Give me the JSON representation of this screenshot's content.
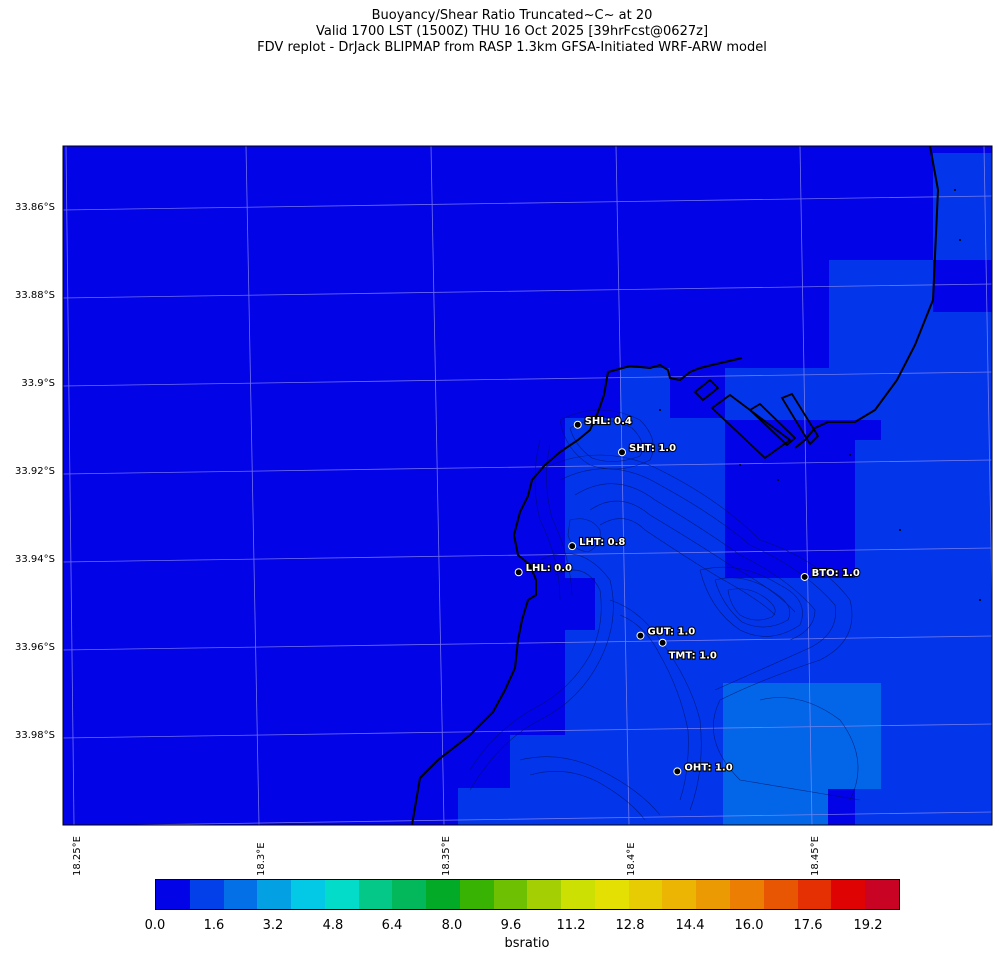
{
  "titles": {
    "line1": "Buoyancy/Shear Ratio Truncated~C~    at 20",
    "line2": "Valid 1700 LST (1500Z) THU 16 Oct 2025 [39hrFcst@0627z]",
    "line3": "FDV replot - DrJack BLIPMAP from RASP 1.3km GFSA-Initiated WRF-ARW model"
  },
  "latitude_labels": [
    "33.86°S",
    "33.88°S",
    "33.9°S",
    "33.92°S",
    "33.94°S",
    "33.96°S",
    "33.98°S"
  ],
  "longitude_labels": [
    "18.25°E",
    "18.3°E",
    "18.35°E",
    "18.4°E",
    "18.45°E"
  ],
  "stations": [
    {
      "label": "SHL: 0.4",
      "lon": 18.388,
      "lat": -33.9085
    },
    {
      "label": "SHT: 1.0",
      "lon": 18.4,
      "lat": -33.9155
    },
    {
      "label": "LHT: 0.8",
      "lon": 18.3865,
      "lat": -33.936
    },
    {
      "label": "LHL: 0.0",
      "lon": 18.372,
      "lat": -33.941
    },
    {
      "label": "BTO: 1.0",
      "lon": 18.4495,
      "lat": -33.947
    },
    {
      "label": "GUT: 1.0",
      "lon": 18.405,
      "lat": -33.9575
    },
    {
      "label": "TMT: 1.0",
      "lon": 18.411,
      "lat": -33.9595
    },
    {
      "label": "OHT: 1.0",
      "lon": 18.415,
      "lat": -33.989
    }
  ],
  "colorbar": {
    "colors": [
      "#0303e8",
      "#0340ea",
      "#0370e8",
      "#03a0e4",
      "#03c8e6",
      "#03dcc8",
      "#03c888",
      "#03b85a",
      "#03aa28",
      "#38b203",
      "#6ec003",
      "#a4d003",
      "#cce003",
      "#e4e003",
      "#e8cc03",
      "#ecb403",
      "#ec9a03",
      "#ec7e03",
      "#e85603",
      "#e43003",
      "#e00303",
      "#c80324"
    ],
    "tick_labels": [
      "0.0",
      "1.6",
      "3.2",
      "4.8",
      "6.4",
      "8.0",
      "9.6",
      "11.2",
      "12.8",
      "14.4",
      "16.0",
      "17.6",
      "19.2"
    ],
    "label": "bsratio"
  }
}
